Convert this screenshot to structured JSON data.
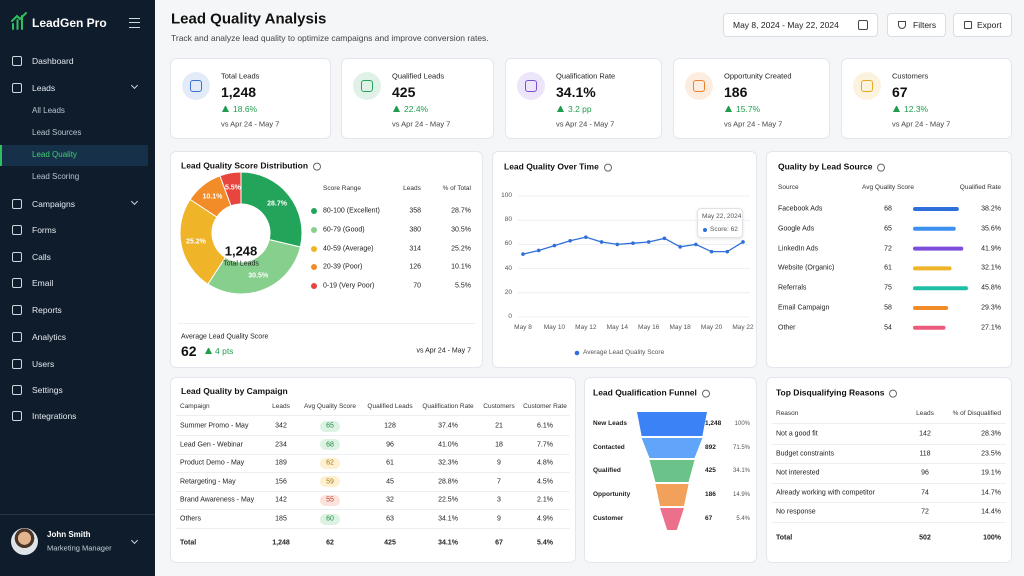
{
  "sidebar": {
    "brand": "LeadGen Pro",
    "nav": [
      {
        "label": "Dashboard",
        "expandable": false
      },
      {
        "label": "Leads",
        "expandable": true
      },
      {
        "label": "Campaigns",
        "expandable": true
      },
      {
        "label": "Forms",
        "expandable": false
      },
      {
        "label": "Calls",
        "expandable": false
      },
      {
        "label": "Email",
        "expandable": false
      },
      {
        "label": "Reports",
        "expandable": false
      },
      {
        "label": "Analytics",
        "expandable": false
      },
      {
        "label": "Users",
        "expandable": false
      },
      {
        "label": "Settings",
        "expandable": false
      },
      {
        "label": "Integrations",
        "expandable": false
      }
    ],
    "subnav": [
      "All Leads",
      "Lead Sources",
      "Lead Quality",
      "Lead Scoring"
    ],
    "active_sub": 2,
    "user": {
      "name": "John Smith",
      "role": "Marketing Manager"
    }
  },
  "header": {
    "title": "Lead Quality Analysis",
    "subtitle": "Track and analyze lead quality to optimize campaigns and improve conversion rates.",
    "date_range": "May 8, 2024 - May 22, 2024",
    "buttons": [
      "Filters",
      "Export"
    ]
  },
  "kpis": [
    {
      "label": "Total Leads",
      "value": "1,248",
      "change": "18.6%",
      "comparison": "vs Apr 24 - May 7",
      "color": "#3b6fd8"
    },
    {
      "label": "Qualified Leads",
      "value": "425",
      "change": "22.4%",
      "comparison": "vs Apr 24 - May 7",
      "color": "#22a55a"
    },
    {
      "label": "Qualification Rate",
      "value": "34.1%",
      "change": "3.2 pp",
      "comparison": "vs Apr 24 - May 7",
      "color": "#7c4ddb"
    },
    {
      "label": "Opportunity Created",
      "value": "186",
      "change": "15.7%",
      "comparison": "vs Apr 24 - May 7",
      "color": "#f07f2a"
    },
    {
      "label": "Customers",
      "value": "67",
      "change": "12.3%",
      "comparison": "vs Apr 24 - May 7",
      "color": "#e9a91f"
    }
  ],
  "score_distribution": {
    "type": "donut",
    "title": "Lead Quality Score Distribution",
    "center_value": "1,248",
    "center_label": "Total Leads",
    "columns": [
      "Score Range",
      "Leads",
      "% of Total"
    ],
    "categories": [
      "80-100 (Excellent)",
      "60-79 (Good)",
      "40-59 (Average)",
      "20-39 (Poor)",
      "0-19 (Very Poor)"
    ],
    "values": [
      358,
      380,
      314,
      126,
      70
    ],
    "percent_labels": [
      "28.7%",
      "30.5%",
      "25.2%",
      "10.1%",
      "5.5%"
    ],
    "colors": [
      "#22a55a",
      "#86cf8c",
      "#f0b429",
      "#f28c28",
      "#e8453c"
    ],
    "footer": {
      "label": "Average Lead Quality Score",
      "value": 62,
      "change": "4 pts",
      "comparison": "vs Apr 24 - May 7"
    }
  },
  "quality_over_time": {
    "type": "line",
    "title": "Lead Quality Over Time",
    "categories": [
      "May 8",
      null,
      "May 10",
      null,
      "May 12",
      null,
      "May 14",
      null,
      "May 16",
      null,
      "May 18",
      null,
      "May 20",
      null,
      "May 22"
    ],
    "series": [
      {
        "name": "Average Lead Quality Score",
        "color": "#2f6fdb",
        "values": [
          52,
          55,
          59,
          63,
          66,
          62,
          60,
          61,
          62,
          65,
          58,
          60,
          54,
          54,
          62
        ]
      }
    ],
    "ylim": [
      0,
      100
    ],
    "yticks": [
      0,
      20,
      40,
      60,
      80,
      100
    ],
    "grid": true,
    "tooltip": {
      "date": "May 22, 2024",
      "text": "Score: 62"
    }
  },
  "lead_sources": {
    "type": "bar",
    "title": "Quality by Lead Source",
    "columns": [
      "Source",
      "Avg Quality Score",
      "Qualified Rate"
    ],
    "categories": [
      "Facebook Ads",
      "Google Ads",
      "LinkedIn Ads",
      "Website (Organic)",
      "Referrals",
      "Email Campaign",
      "Other"
    ],
    "scores": [
      68,
      65,
      72,
      61,
      75,
      58,
      54
    ],
    "values": [
      38.2,
      35.6,
      41.9,
      32.1,
      45.8,
      29.3,
      27.1
    ],
    "value_labels": [
      "38.2%",
      "35.6%",
      "41.9%",
      "32.1%",
      "45.8%",
      "29.3%",
      "27.1%"
    ],
    "colors": [
      "#2f6fdb",
      "#3b8ff0",
      "#7c4ddb",
      "#f0b429",
      "#1fbfa6",
      "#f28c28",
      "#ec5b7b"
    ]
  },
  "campaigns": {
    "title": "Lead Quality by Campaign",
    "columns": [
      "Campaign",
      "Leads",
      "Avg Quality Score",
      "Qualified Leads",
      "Qualification Rate",
      "Customers",
      "Customer Rate"
    ],
    "rows": [
      [
        "Summer Promo - May",
        "342",
        "65",
        "128",
        "37.4%",
        "21",
        "6.1%"
      ],
      [
        "Lead Gen - Webinar",
        "234",
        "68",
        "96",
        "41.0%",
        "18",
        "7.7%"
      ],
      [
        "Product Demo - May",
        "189",
        "62",
        "61",
        "32.3%",
        "9",
        "4.8%"
      ],
      [
        "Retargeting - May",
        "156",
        "59",
        "45",
        "28.8%",
        "7",
        "4.5%"
      ],
      [
        "Brand Awareness - May",
        "142",
        "55",
        "32",
        "22.5%",
        "3",
        "2.1%"
      ],
      [
        "Others",
        "185",
        "60",
        "63",
        "34.1%",
        "9",
        "4.9%"
      ]
    ],
    "total": [
      "Total",
      "1,248",
      "62",
      "425",
      "34.1%",
      "67",
      "5.4%"
    ],
    "badge_colors": [
      "#dcf3e3",
      "#dcf3e3",
      "#fdf1d2",
      "#fdf1d2",
      "#fde2dc",
      "#dcf3e3"
    ],
    "badge_text_colors": [
      "#1e8a45",
      "#1e8a45",
      "#a7760d",
      "#a7760d",
      "#c0392b",
      "#1e8a45"
    ]
  },
  "funnel": {
    "type": "funnel",
    "title": "Lead Qualification Funnel",
    "categories": [
      "New Leads",
      "Contacted",
      "Qualified",
      "Opportunity",
      "Customer"
    ],
    "values": [
      1248,
      892,
      425,
      186,
      67
    ],
    "value_labels": [
      "1,248",
      "892",
      "425",
      "186",
      "67"
    ],
    "percent_labels": [
      "100%",
      "71.5%",
      "34.1%",
      "14.9%",
      "5.4%"
    ],
    "colors": [
      "#3b82f6",
      "#60a5fa",
      "#6cc38a",
      "#f2a15a",
      "#ec6f8c"
    ]
  },
  "reasons": {
    "title": "Top Disqualifying Reasons",
    "columns": [
      "Reason",
      "Leads",
      "% of Disqualified"
    ],
    "rows": [
      [
        "Not a good fit",
        "142",
        "28.3%"
      ],
      [
        "Budget constraints",
        "118",
        "23.5%"
      ],
      [
        "Not interested",
        "96",
        "19.1%"
      ],
      [
        "Already working with competitor",
        "74",
        "14.7%"
      ],
      [
        "No response",
        "72",
        "14.4%"
      ]
    ],
    "total": [
      "Total",
      "502",
      "100%"
    ]
  }
}
